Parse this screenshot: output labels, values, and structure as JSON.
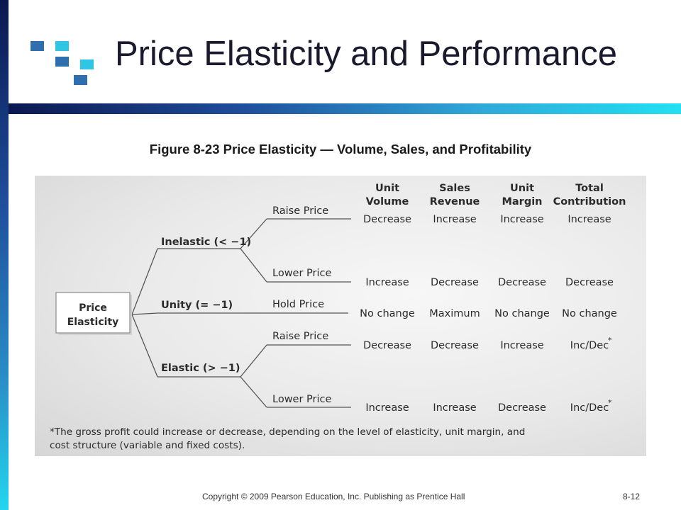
{
  "slide": {
    "title": "Price Elasticity and Performance",
    "subtitle": "Figure 8-23 Price Elasticity — Volume, Sales, and Profitability",
    "footer_copyright": "Copyright © 2009 Pearson Education, Inc.  Publishing as Prentice Hall",
    "page_number": "8-12"
  },
  "colors": {
    "dark_blue": "#1f4e9c",
    "cyan": "#22d6ee",
    "panel_gray": "#e6e6e6"
  },
  "figure": {
    "root_label_line1": "Price",
    "root_label_line2": "Elasticity",
    "columns": [
      {
        "line1": "Unit",
        "line2": "Volume"
      },
      {
        "line1": "Sales",
        "line2": "Revenue"
      },
      {
        "line1": "Unit",
        "line2": "Margin"
      },
      {
        "line1": "Total",
        "line2": "Contribution"
      }
    ],
    "branches": [
      {
        "label": "Inelastic (< −1)"
      },
      {
        "label": "Unity (= −1)"
      },
      {
        "label": "Elastic (> −1)"
      }
    ],
    "actions": [
      {
        "label": "Raise Price",
        "values": [
          "Decrease",
          "Increase",
          "Increase",
          "Increase"
        ]
      },
      {
        "label": "Lower Price",
        "values": [
          "Increase",
          "Decrease",
          "Decrease",
          "Decrease"
        ]
      },
      {
        "label": "Hold Price",
        "values": [
          "No change",
          "Maximum",
          "No change",
          "No change"
        ]
      },
      {
        "label": "Raise Price",
        "values": [
          "Decrease",
          "Decrease",
          "Increase",
          "Inc/Dec"
        ]
      },
      {
        "label": "Lower Price",
        "values": [
          "Increase",
          "Increase",
          "Decrease",
          "Inc/Dec"
        ]
      }
    ],
    "asterisk": "*",
    "footnote_line1": "*The gross profit could increase or decrease, depending on the level of elasticity, unit margin, and",
    "footnote_line2": "cost structure (variable and fixed costs)."
  }
}
